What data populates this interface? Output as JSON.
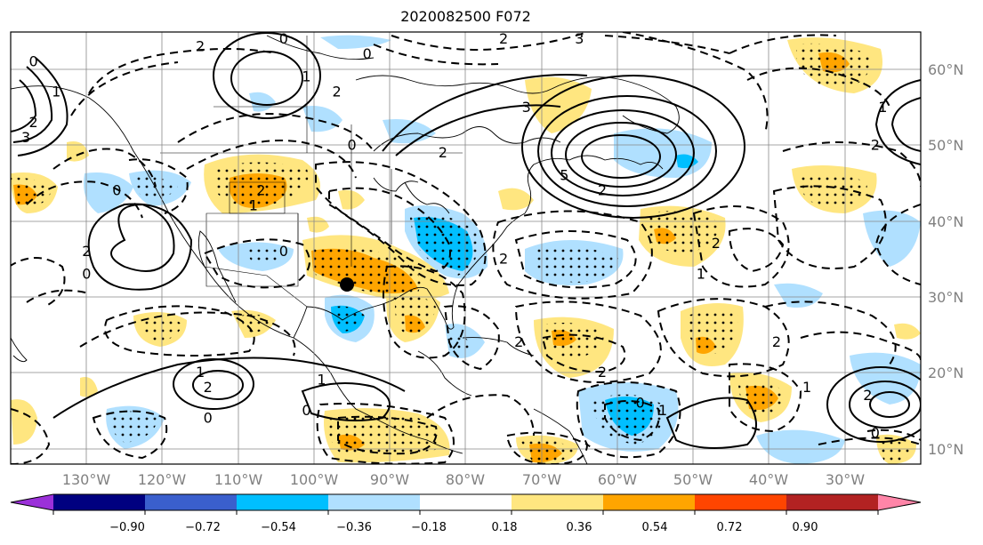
{
  "title": "2020082500 F072",
  "map": {
    "lon_ticks": [
      "130°W",
      "120°W",
      "110°W",
      "100°W",
      "90°W",
      "80°W",
      "70°W",
      "60°W",
      "50°W",
      "40°W",
      "30°W"
    ],
    "lat_ticks": [
      "60°N",
      "50°N",
      "40°N",
      "30°N",
      "20°N",
      "10°N"
    ],
    "lon_range": [
      -136,
      -16
    ],
    "lat_range": [
      8,
      65
    ],
    "contour_labels": [
      {
        "text": "0",
        "lon": -133,
        "lat": 61
      },
      {
        "text": "1",
        "lon": -130,
        "lat": 57
      },
      {
        "text": "2",
        "lon": -133,
        "lat": 53
      },
      {
        "text": "3",
        "lon": -134,
        "lat": 51
      },
      {
        "text": "0",
        "lon": -100,
        "lat": 64
      },
      {
        "text": "2",
        "lon": -111,
        "lat": 63
      },
      {
        "text": "0",
        "lon": -89,
        "lat": 62
      },
      {
        "text": "1",
        "lon": -97,
        "lat": 59
      },
      {
        "text": "2",
        "lon": -93,
        "lat": 57
      },
      {
        "text": "0",
        "lon": -91,
        "lat": 50
      },
      {
        "text": "2",
        "lon": -79,
        "lat": 49
      },
      {
        "text": "2",
        "lon": -71,
        "lat": 64
      },
      {
        "text": "3",
        "lon": -61,
        "lat": 64
      },
      {
        "text": "3",
        "lon": -68,
        "lat": 55
      },
      {
        "text": "5",
        "lon": -63,
        "lat": 46
      },
      {
        "text": "2",
        "lon": -58,
        "lat": 44
      },
      {
        "text": "0",
        "lon": -122,
        "lat": 44
      },
      {
        "text": "2",
        "lon": -126,
        "lat": 36
      },
      {
        "text": "0",
        "lon": -126,
        "lat": 33
      },
      {
        "text": "0",
        "lon": -100,
        "lat": 36
      },
      {
        "text": "1",
        "lon": -104,
        "lat": 42
      },
      {
        "text": "2",
        "lon": -103,
        "lat": 44
      },
      {
        "text": "2",
        "lon": -71,
        "lat": 35
      },
      {
        "text": "2",
        "lon": -43,
        "lat": 37
      },
      {
        "text": "1",
        "lon": -45,
        "lat": 33
      },
      {
        "text": "2",
        "lon": -35,
        "lat": 24
      },
      {
        "text": "2",
        "lon": -69,
        "lat": 24
      },
      {
        "text": "2",
        "lon": -58,
        "lat": 20
      },
      {
        "text": "1",
        "lon": -111,
        "lat": 20
      },
      {
        "text": "2",
        "lon": -110,
        "lat": 18
      },
      {
        "text": "1",
        "lon": -95,
        "lat": 19
      },
      {
        "text": "0",
        "lon": -97,
        "lat": 15
      },
      {
        "text": "0",
        "lon": -110,
        "lat": 14
      },
      {
        "text": "2",
        "lon": -23,
        "lat": 17
      },
      {
        "text": "1",
        "lon": -31,
        "lat": 18
      },
      {
        "text": "0",
        "lon": -53,
        "lat": 16
      },
      {
        "text": "1",
        "lon": -50,
        "lat": 15
      },
      {
        "text": "0",
        "lon": -22,
        "lat": 12
      },
      {
        "text": "2",
        "lon": -22,
        "lat": 50
      },
      {
        "text": "1",
        "lon": -21,
        "lat": 55
      }
    ]
  },
  "colorbar": {
    "ticks": [
      "−0.90",
      "−0.72",
      "−0.54",
      "−0.36",
      "−0.18",
      "0.18",
      "0.36",
      "0.54",
      "0.72",
      "0.90"
    ],
    "colors": [
      "#9b30d9",
      "#000080",
      "#3a5fcd",
      "#00bfff",
      "#b0e0ff",
      "#ffffff",
      "#ffe680",
      "#ffa500",
      "#ff4500",
      "#b22222",
      "#ff85a8"
    ]
  }
}
